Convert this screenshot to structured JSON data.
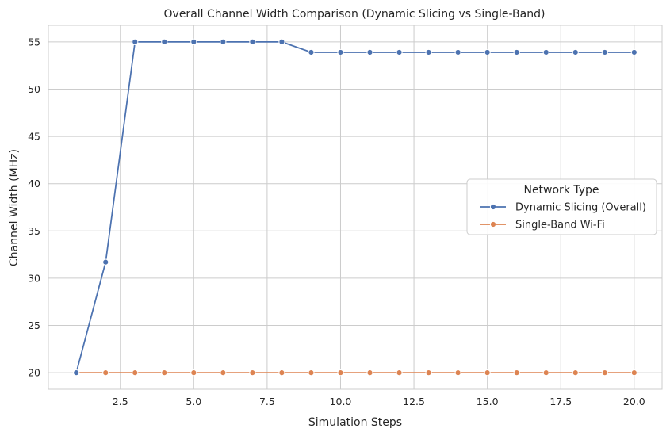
{
  "chart_data": {
    "type": "line",
    "title": "Overall Channel Width Comparison (Dynamic Slicing vs Single-Band)",
    "xlabel": "Simulation Steps",
    "ylabel": "Channel Width (MHz)",
    "xlim": [
      0.05,
      20.95
    ],
    "ylim": [
      18.25,
      56.75
    ],
    "xticks": [
      2.5,
      5.0,
      7.5,
      10.0,
      12.5,
      15.0,
      17.5,
      20.0
    ],
    "xtick_labels": [
      "2.5",
      "5.0",
      "7.5",
      "10.0",
      "12.5",
      "15.0",
      "17.5",
      "20.0"
    ],
    "yticks": [
      20,
      25,
      30,
      35,
      40,
      45,
      50,
      55
    ],
    "ytick_labels": [
      "20",
      "25",
      "30",
      "35",
      "40",
      "45",
      "50",
      "55"
    ],
    "grid": true,
    "legend": {
      "title": "Network Type",
      "placement": "center-right"
    },
    "x": [
      1,
      2,
      3,
      4,
      5,
      6,
      7,
      8,
      9,
      10,
      11,
      12,
      13,
      14,
      15,
      16,
      17,
      18,
      19,
      20
    ],
    "series": [
      {
        "name": "Dynamic Slicing (Overall)",
        "color": "#4c72b0",
        "marker": "circle",
        "values": [
          20,
          31.7,
          55,
          55,
          55,
          55,
          55,
          55,
          53.9,
          53.9,
          53.9,
          53.9,
          53.9,
          53.9,
          53.9,
          53.9,
          53.9,
          53.9,
          53.9,
          53.9
        ]
      },
      {
        "name": "Single-Band Wi-Fi",
        "color": "#dd8452",
        "marker": "circle",
        "values": [
          20,
          20,
          20,
          20,
          20,
          20,
          20,
          20,
          20,
          20,
          20,
          20,
          20,
          20,
          20,
          20,
          20,
          20,
          20,
          20
        ]
      }
    ]
  }
}
